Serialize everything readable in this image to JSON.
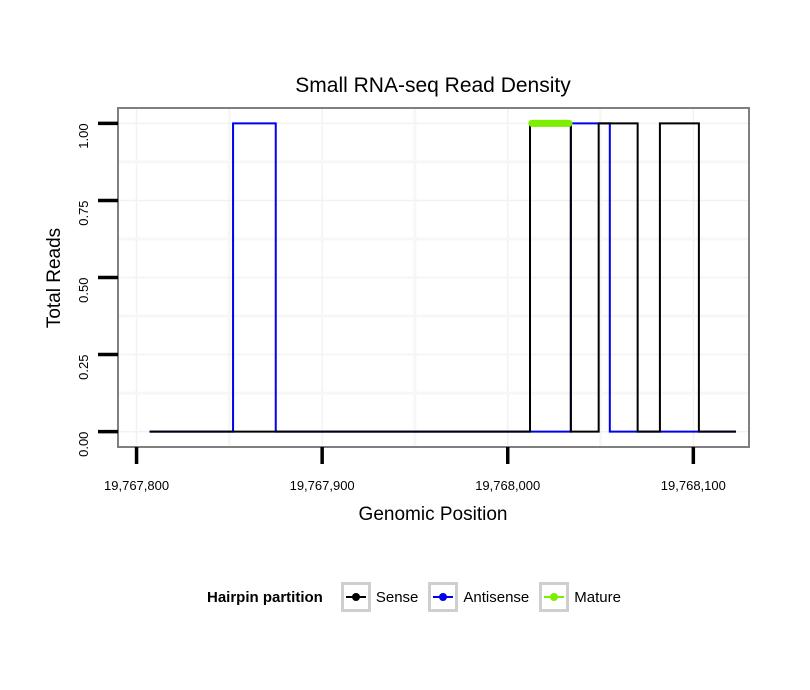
{
  "chart_data": {
    "type": "line",
    "title": "Small RNA-seq Read Density",
    "xlabel": "Genomic Position",
    "ylabel": "Total Reads",
    "xlim": [
      19767790,
      19768130
    ],
    "ylim": [
      -0.05,
      1.05
    ],
    "x_ticks": [
      19767800,
      19767900,
      19768000,
      19768100
    ],
    "x_tick_labels": [
      "19,767,800",
      "19,767,900",
      "19,768,000",
      "19,768,100"
    ],
    "y_ticks": [
      0,
      0.25,
      0.5,
      0.75,
      1.0
    ],
    "y_tick_labels": [
      "0.00",
      "0.25",
      "0.50",
      "0.75",
      "1.00"
    ],
    "grid": true,
    "legend_position": "bottom",
    "legend_title": "Hairpin partition",
    "series": [
      {
        "name": "Sense",
        "color": "#000000",
        "points": [
          [
            19767807,
            0
          ],
          [
            19768012,
            0
          ],
          [
            19768012,
            1
          ],
          [
            19768034,
            1
          ],
          [
            19768034,
            0
          ],
          [
            19768049,
            0
          ],
          [
            19768049,
            1
          ],
          [
            19768070,
            1
          ],
          [
            19768070,
            0
          ],
          [
            19768082,
            0
          ],
          [
            19768082,
            1
          ],
          [
            19768103,
            1
          ],
          [
            19768103,
            0
          ],
          [
            19768123,
            0
          ]
        ]
      },
      {
        "name": "Antisense",
        "color": "#0000ee",
        "points": [
          [
            19767807,
            0
          ],
          [
            19767852,
            0
          ],
          [
            19767852,
            1
          ],
          [
            19767875,
            1
          ],
          [
            19767875,
            0
          ],
          [
            19768034,
            0
          ],
          [
            19768034,
            1
          ],
          [
            19768055,
            1
          ],
          [
            19768055,
            0
          ],
          [
            19768123,
            0
          ]
        ]
      },
      {
        "name": "Mature",
        "color": "#7cee00",
        "points": [
          [
            19768013,
            1
          ],
          [
            19768033,
            1
          ]
        ]
      }
    ]
  }
}
